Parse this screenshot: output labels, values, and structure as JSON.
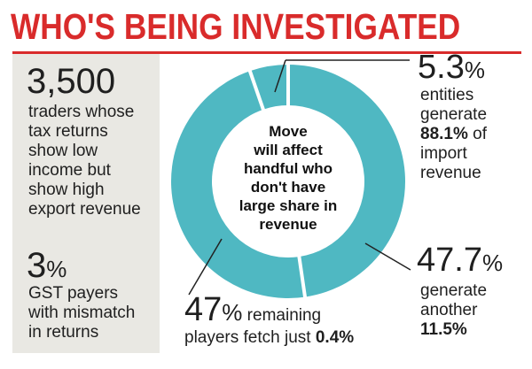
{
  "title": "WHO'S BEING INVESTIGATED",
  "sidebar": {
    "stat1_number": "3,500",
    "stat1_text": "traders whose\ntax returns\nshow low\nincome but\nshow high\nexport revenue",
    "stat2_number": "3",
    "stat2_unit": "%",
    "stat2_text": "GST payers\nwith mismatch\nin returns"
  },
  "center_label": "Move\nwill affect\nhandful who\ndon't have\nlarge share in\nrevenue",
  "callouts": {
    "top_right": {
      "number": "5.3",
      "unit": "%",
      "text_before": "entities\ngenerate",
      "bold": "88.1%",
      "text_mid": " of",
      "text_after": "import\nrevenue"
    },
    "bottom_right": {
      "number": "47.7",
      "unit": "%",
      "text_before": "generate\nanother",
      "bold": "11.5%"
    },
    "bottom": {
      "number": "47",
      "unit": "%",
      "text_line1": " remaining",
      "text_line2": "players fetch just ",
      "bold": "0.4%"
    }
  },
  "colors": {
    "title": "#d92b2b",
    "ring": "#4fb8c2",
    "sidebar_bg": "#e9e8e3",
    "separator": "#ffffff",
    "leader": "#222222"
  },
  "chart_data": {
    "type": "pie",
    "style": "donut",
    "series": [
      {
        "name": "5.3% entities",
        "value": 5.3
      },
      {
        "name": "47.7%",
        "value": 47.7
      },
      {
        "name": "47% remaining players",
        "value": 47
      }
    ]
  }
}
